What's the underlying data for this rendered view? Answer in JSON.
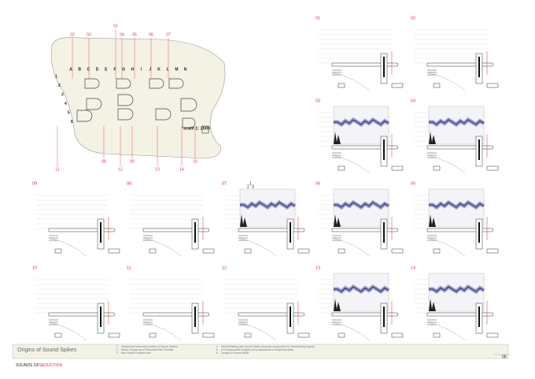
{
  "map": {
    "top_labels": [
      "01",
      "02",
      "03",
      "04",
      "05",
      "06",
      "07"
    ],
    "bottom_labels": [
      "11",
      "08",
      "12",
      "09",
      "13",
      "14",
      "10"
    ],
    "columns": [
      "A",
      "B",
      "C",
      "D",
      "E",
      "F",
      "G",
      "H",
      "I",
      "J",
      "K",
      "L",
      "M",
      "N"
    ],
    "rows": [
      "1",
      "2",
      "3",
      "4",
      "5",
      "6"
    ],
    "scale": "scale 1: 2000"
  },
  "panels": [
    {
      "number": "01",
      "spectrogram": false
    },
    {
      "number": "02",
      "spectrogram": false
    },
    {
      "number": "03",
      "spectrogram": true
    },
    {
      "number": "04",
      "spectrogram": true
    },
    {
      "number": "09",
      "spectrogram": false
    },
    {
      "number": "08",
      "spectrogram": false
    },
    {
      "number": "07",
      "spectrogram": true,
      "annotations": [
        "1",
        "2",
        "3"
      ]
    },
    {
      "number": "06",
      "spectrogram": true
    },
    {
      "number": "05",
      "spectrogram": true
    },
    {
      "number": "10",
      "spectrogram": false
    },
    {
      "number": "11",
      "spectrogram": false
    },
    {
      "number": "12",
      "spectrogram": false
    },
    {
      "number": "13",
      "spectrogram": true
    },
    {
      "number": "14",
      "spectrogram": true
    }
  ],
  "footer": {
    "title": "Origins of Sound Spikes",
    "legend": [
      {
        "number": "1",
        "text": "Sequential reference number of Sound Spikes"
      },
      {
        "number": "2",
        "text": "Mean Frequency of Recorded Bird Sounds"
      },
      {
        "number": "3",
        "text": "Bird Sound Frequencies"
      },
      {
        "number": "4",
        "text": "Metal Building aka Sound Spike (acoustic component for transmitting Signal)"
      },
      {
        "number": "5",
        "text": "(4-5 frequencies heights are proportional to frequency data)"
      },
      {
        "number": "6",
        "text": "Length of Sound Spike"
      }
    ],
    "brand": "SOUNDS OF",
    "brand_accent": "SEDUCTION",
    "page": "05"
  }
}
